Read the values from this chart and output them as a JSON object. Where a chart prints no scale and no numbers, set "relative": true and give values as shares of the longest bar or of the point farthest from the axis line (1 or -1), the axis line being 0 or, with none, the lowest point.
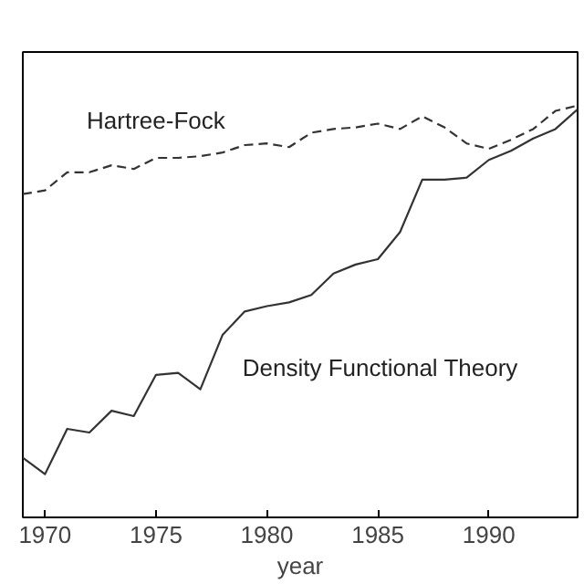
{
  "chart_data": {
    "type": "line",
    "xlabel": "year",
    "relative": true,
    "x": [
      1969,
      1970,
      1971,
      1972,
      1973,
      1974,
      1975,
      1976,
      1977,
      1978,
      1979,
      1980,
      1981,
      1982,
      1983,
      1984,
      1985,
      1986,
      1987,
      1988,
      1989,
      1990,
      1991,
      1992,
      1993,
      1994
    ],
    "xlim": [
      1969,
      1994
    ],
    "xticks": [
      1970,
      1975,
      1980,
      1985,
      1990
    ],
    "series": [
      {
        "name": "Hartree-Fock",
        "color": "#333333",
        "line_style": "dashed",
        "values": [
          0.785,
          0.794,
          0.838,
          0.838,
          0.855,
          0.846,
          0.873,
          0.873,
          0.877,
          0.886,
          0.904,
          0.908,
          0.899,
          0.934,
          0.943,
          0.947,
          0.956,
          0.943,
          0.974,
          0.947,
          0.908,
          0.895,
          0.917,
          0.943,
          0.987,
          1.0
        ]
      },
      {
        "name": "Density Functional Theory",
        "color": "#333333",
        "line_style": "solid",
        "values": [
          0.145,
          0.105,
          0.215,
          0.206,
          0.259,
          0.246,
          0.346,
          0.351,
          0.311,
          0.443,
          0.5,
          0.513,
          0.522,
          0.54,
          0.592,
          0.614,
          0.627,
          0.693,
          0.82,
          0.82,
          0.825,
          0.868,
          0.89,
          0.92,
          0.943,
          0.991
        ]
      }
    ],
    "grid": false
  }
}
